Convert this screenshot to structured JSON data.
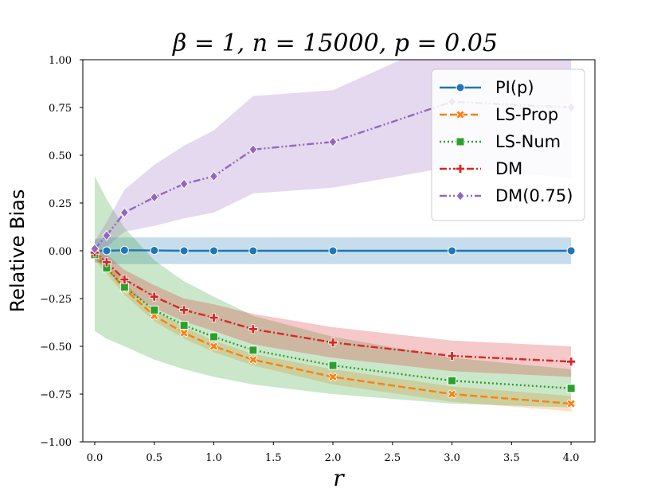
{
  "chart_data": {
    "type": "line",
    "title": "β = 1, n = 15000, p = 0.05",
    "xlabel": "r",
    "ylabel": "Relative Bias",
    "xlim": [
      -0.1,
      4.2
    ],
    "ylim": [
      -1.0,
      1.0
    ],
    "xticks": [
      0.0,
      0.5,
      1.0,
      1.5,
      2.0,
      2.5,
      3.0,
      3.5,
      4.0
    ],
    "xtick_labels": [
      "0.0",
      "0.5",
      "1.0",
      "1.5",
      "2.0",
      "2.5",
      "3.0",
      "3.5",
      "4.0"
    ],
    "yticks": [
      -1.0,
      -0.75,
      -0.5,
      -0.25,
      0.0,
      0.25,
      0.5,
      0.75,
      1.0
    ],
    "ytick_labels": [
      "−1.00",
      "−0.75",
      "−0.50",
      "−0.25",
      "0.00",
      "0.25",
      "0.50",
      "0.75",
      "1.00"
    ],
    "legend_position": "top-right",
    "x": [
      0.0,
      0.1,
      0.25,
      0.5,
      0.75,
      1.0,
      1.33,
      2.0,
      3.0,
      4.0
    ],
    "series": [
      {
        "name": "PI(p)",
        "color": "#1f77b4",
        "marker": "circle",
        "dash": "solid",
        "values": [
          0.0,
          0.0,
          0.003,
          0.002,
          0.0,
          0.0,
          0.0,
          0.0,
          0.0,
          0.0
        ],
        "lower": [
          -0.06,
          -0.07,
          -0.07,
          -0.07,
          -0.07,
          -0.07,
          -0.07,
          -0.07,
          -0.07,
          -0.07
        ],
        "upper": [
          0.06,
          0.07,
          0.07,
          0.07,
          0.07,
          0.07,
          0.07,
          0.07,
          0.07,
          0.07
        ]
      },
      {
        "name": "LS-Prop",
        "color": "#ff7f0e",
        "marker": "x",
        "dash": "dashed",
        "values": [
          -0.02,
          -0.09,
          -0.2,
          -0.34,
          -0.43,
          -0.5,
          -0.57,
          -0.66,
          -0.75,
          -0.8
        ],
        "lower": [
          -0.05,
          -0.12,
          -0.23,
          -0.37,
          -0.46,
          -0.53,
          -0.6,
          -0.7,
          -0.79,
          -0.84
        ],
        "upper": [
          0.01,
          -0.06,
          -0.17,
          -0.31,
          -0.4,
          -0.47,
          -0.54,
          -0.62,
          -0.71,
          -0.76
        ]
      },
      {
        "name": "LS-Num",
        "color": "#2ca02c",
        "marker": "square",
        "dash": "dotted",
        "values": [
          -0.02,
          -0.09,
          -0.19,
          -0.31,
          -0.39,
          -0.45,
          -0.52,
          -0.6,
          -0.68,
          -0.72
        ],
        "lower": [
          -0.42,
          -0.46,
          -0.5,
          -0.57,
          -0.62,
          -0.66,
          -0.7,
          -0.75,
          -0.8,
          -0.82
        ],
        "upper": [
          0.39,
          0.27,
          0.12,
          -0.05,
          -0.16,
          -0.24,
          -0.34,
          -0.45,
          -0.56,
          -0.62
        ]
      },
      {
        "name": "DM",
        "color": "#d62728",
        "marker": "plus",
        "dash": "dashdot",
        "values": [
          -0.01,
          -0.06,
          -0.15,
          -0.24,
          -0.31,
          -0.35,
          -0.41,
          -0.48,
          -0.55,
          -0.58
        ],
        "lower": [
          -0.04,
          -0.1,
          -0.2,
          -0.3,
          -0.37,
          -0.42,
          -0.49,
          -0.56,
          -0.63,
          -0.66
        ],
        "upper": [
          0.02,
          -0.02,
          -0.1,
          -0.18,
          -0.25,
          -0.28,
          -0.33,
          -0.4,
          -0.47,
          -0.5
        ]
      },
      {
        "name": "DM(0.75)",
        "color": "#9467bd",
        "marker": "diamond",
        "dash": "dashdotdot",
        "values": [
          0.01,
          0.08,
          0.2,
          0.28,
          0.35,
          0.39,
          0.53,
          0.57,
          0.78,
          0.75
        ],
        "lower": [
          -0.02,
          0.02,
          0.1,
          0.13,
          0.17,
          0.2,
          0.3,
          0.33,
          0.44,
          0.38
        ],
        "upper": [
          0.05,
          0.15,
          0.32,
          0.45,
          0.55,
          0.63,
          0.81,
          0.84,
          1.12,
          1.15
        ]
      }
    ]
  }
}
